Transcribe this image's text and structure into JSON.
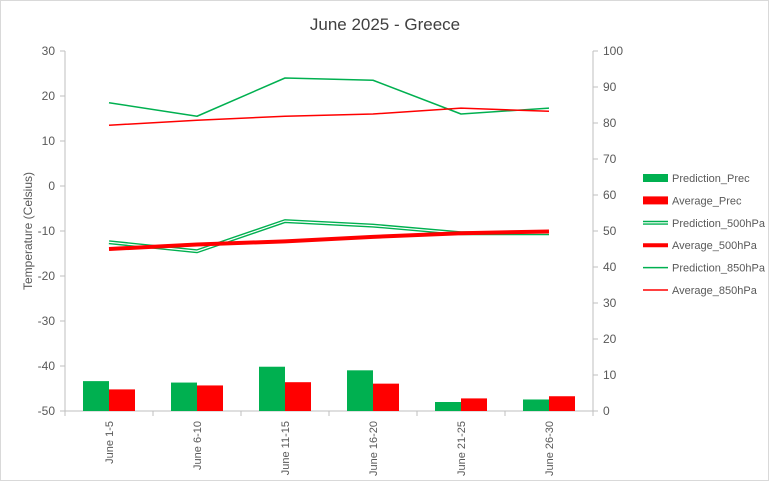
{
  "chart_data": {
    "title": "June 2025 - Greece",
    "type": "bar",
    "categories": [
      "June 1-5",
      "June 6-10",
      "June 11-15",
      "June 16-20",
      "June 21-25",
      "June 26-30"
    ],
    "y_left": {
      "label": "Temperature (Celsius)",
      "range": [
        -50,
        30
      ],
      "ticks": [
        30,
        20,
        10,
        0,
        -10,
        -20,
        -30,
        -40,
        -50
      ]
    },
    "y_right": {
      "label": "",
      "range": [
        0,
        100
      ],
      "ticks": [
        100,
        90,
        80,
        70,
        60,
        50,
        40,
        30,
        20,
        10,
        0
      ]
    },
    "grid": false,
    "legend_position": "right",
    "series": [
      {
        "name": "Prediction_Prec",
        "type": "bar",
        "axis": "right",
        "color": "#00b050",
        "values": [
          8.3,
          7.9,
          12.3,
          11.3,
          2.5,
          3.2
        ]
      },
      {
        "name": "Average_Prec",
        "type": "bar",
        "axis": "right",
        "color": "#ff0000",
        "values": [
          6.0,
          7.1,
          8.0,
          7.6,
          3.5,
          4.1
        ]
      },
      {
        "name": "Prediction_500hPa",
        "type": "line-double",
        "axis": "left",
        "color": "#00b050",
        "values": [
          -12.5,
          -14.5,
          -7.8,
          -8.8,
          -10.5,
          -10.5
        ]
      },
      {
        "name": "Average_500hPa",
        "type": "line-thick",
        "axis": "left",
        "color": "#ff0000",
        "values": [
          -14.0,
          -13.0,
          -12.3,
          -11.3,
          -10.5,
          -10.1
        ]
      },
      {
        "name": "Prediction_850hPa",
        "type": "line",
        "axis": "left",
        "color": "#00b050",
        "values": [
          18.5,
          15.5,
          24.0,
          23.5,
          16.0,
          17.3
        ]
      },
      {
        "name": "Average_850hPa",
        "type": "line",
        "axis": "left",
        "color": "#ff0000",
        "values": [
          13.5,
          14.6,
          15.5,
          16.0,
          17.3,
          16.6
        ]
      }
    ]
  }
}
